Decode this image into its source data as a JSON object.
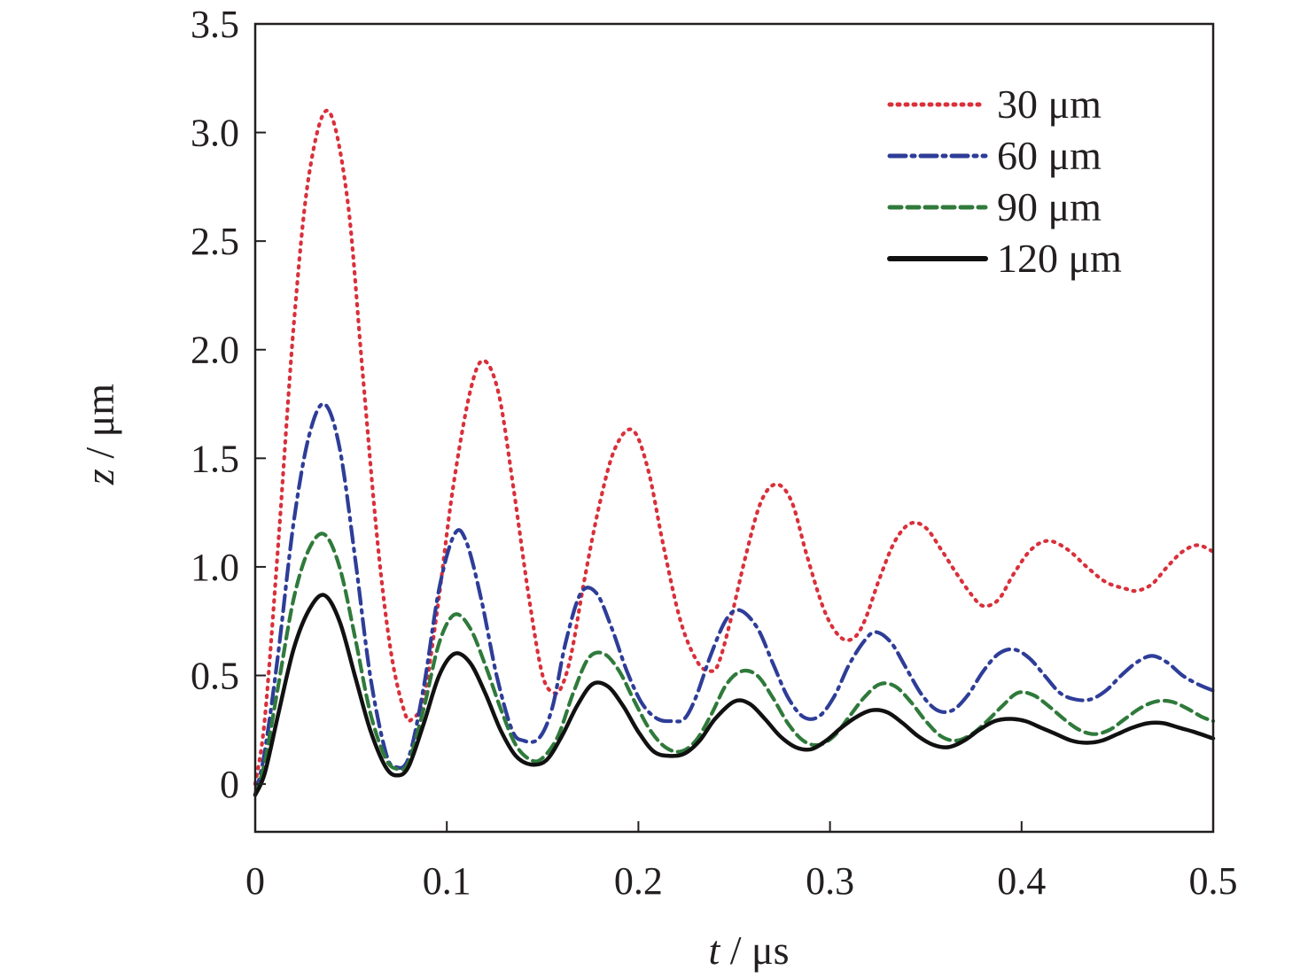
{
  "chart_data": {
    "type": "line",
    "xlabel": {
      "var": "t",
      "unit": " / μs"
    },
    "ylabel": {
      "var": "z",
      "unit": " / μm"
    },
    "xlim": [
      0,
      0.5
    ],
    "ylim": [
      -0.22,
      3.5
    ],
    "xticks": [
      0,
      0.1,
      0.2,
      0.3,
      0.4,
      0.5
    ],
    "xtick_labels": [
      "0",
      "0.1",
      "0.2",
      "0.3",
      "0.4",
      "0.5"
    ],
    "yticks": [
      0,
      0.5,
      1.0,
      1.5,
      2.0,
      2.5,
      3.0,
      3.5
    ],
    "ytick_labels": [
      "0",
      "0.5",
      "1.0",
      "1.5",
      "2.0",
      "2.5",
      "3.0",
      "3.5"
    ],
    "grid": false,
    "legend_position": "top-right",
    "series": [
      {
        "name": "30 μm",
        "color": "#d9303a",
        "style": "dotted",
        "x": [
          0,
          0.005,
          0.012,
          0.02,
          0.028,
          0.038,
          0.048,
          0.056,
          0.064,
          0.071,
          0.078,
          0.082,
          0.088,
          0.095,
          0.103,
          0.112,
          0.119,
          0.127,
          0.135,
          0.143,
          0.15,
          0.156,
          0.16,
          0.165,
          0.172,
          0.18,
          0.188,
          0.197,
          0.205,
          0.213,
          0.222,
          0.231,
          0.238,
          0.242,
          0.248,
          0.256,
          0.264,
          0.272,
          0.28,
          0.288,
          0.297,
          0.305,
          0.312,
          0.318,
          0.326,
          0.334,
          0.342,
          0.35,
          0.358,
          0.366,
          0.374,
          0.38,
          0.388,
          0.396,
          0.405,
          0.414,
          0.424,
          0.434,
          0.444,
          0.454,
          0.46,
          0.468,
          0.476,
          0.484,
          0.492,
          0.5
        ],
        "y": [
          0,
          0.3,
          1.1,
          2.1,
          2.8,
          3.1,
          2.7,
          1.9,
          1.1,
          0.6,
          0.33,
          0.3,
          0.4,
          0.8,
          1.35,
          1.8,
          1.95,
          1.8,
          1.35,
          0.85,
          0.5,
          0.42,
          0.45,
          0.6,
          0.95,
          1.3,
          1.55,
          1.63,
          1.45,
          1.1,
          0.75,
          0.56,
          0.52,
          0.56,
          0.75,
          1.05,
          1.3,
          1.38,
          1.3,
          1.05,
          0.8,
          0.68,
          0.67,
          0.75,
          0.95,
          1.12,
          1.2,
          1.18,
          1.08,
          0.97,
          0.87,
          0.82,
          0.85,
          0.97,
          1.08,
          1.12,
          1.08,
          1.0,
          0.93,
          0.9,
          0.89,
          0.92,
          1.0,
          1.07,
          1.1,
          1.07
        ]
      },
      {
        "name": "60 μm",
        "color": "#2e3d98",
        "style": "dashdot",
        "x": [
          0,
          0.005,
          0.012,
          0.02,
          0.028,
          0.036,
          0.044,
          0.052,
          0.06,
          0.068,
          0.073,
          0.08,
          0.088,
          0.096,
          0.104,
          0.11,
          0.118,
          0.126,
          0.134,
          0.14,
          0.148,
          0.155,
          0.162,
          0.17,
          0.178,
          0.186,
          0.194,
          0.202,
          0.21,
          0.218,
          0.224,
          0.23,
          0.238,
          0.246,
          0.253,
          0.262,
          0.27,
          0.278,
          0.286,
          0.294,
          0.302,
          0.31,
          0.318,
          0.324,
          0.332,
          0.34,
          0.348,
          0.356,
          0.364,
          0.372,
          0.38,
          0.388,
          0.396,
          0.404,
          0.412,
          0.42,
          0.428,
          0.436,
          0.444,
          0.452,
          0.46,
          0.468,
          0.476,
          0.484,
          0.492,
          0.5
        ],
        "y": [
          -0.05,
          0.15,
          0.6,
          1.2,
          1.6,
          1.75,
          1.55,
          1.05,
          0.5,
          0.15,
          0.08,
          0.12,
          0.45,
          0.9,
          1.15,
          1.12,
          0.85,
          0.5,
          0.25,
          0.2,
          0.21,
          0.35,
          0.65,
          0.88,
          0.88,
          0.72,
          0.52,
          0.37,
          0.3,
          0.29,
          0.3,
          0.4,
          0.6,
          0.76,
          0.8,
          0.72,
          0.56,
          0.4,
          0.31,
          0.31,
          0.4,
          0.55,
          0.66,
          0.7,
          0.65,
          0.53,
          0.41,
          0.34,
          0.34,
          0.41,
          0.52,
          0.6,
          0.62,
          0.58,
          0.5,
          0.42,
          0.39,
          0.39,
          0.43,
          0.5,
          0.56,
          0.59,
          0.56,
          0.5,
          0.46,
          0.43
        ]
      },
      {
        "name": "90 μm",
        "color": "#2f7a3b",
        "style": "dashed",
        "x": [
          0,
          0.005,
          0.012,
          0.02,
          0.028,
          0.036,
          0.044,
          0.052,
          0.06,
          0.068,
          0.074,
          0.08,
          0.088,
          0.096,
          0.104,
          0.112,
          0.12,
          0.128,
          0.136,
          0.144,
          0.15,
          0.158,
          0.166,
          0.174,
          0.182,
          0.19,
          0.198,
          0.206,
          0.214,
          0.222,
          0.23,
          0.238,
          0.246,
          0.254,
          0.262,
          0.27,
          0.278,
          0.286,
          0.294,
          0.302,
          0.31,
          0.318,
          0.326,
          0.334,
          0.342,
          0.35,
          0.358,
          0.366,
          0.374,
          0.382,
          0.39,
          0.398,
          0.406,
          0.414,
          0.422,
          0.43,
          0.438,
          0.446,
          0.454,
          0.462,
          0.47,
          0.478,
          0.486,
          0.494,
          0.5
        ],
        "y": [
          -0.05,
          0.1,
          0.45,
          0.85,
          1.08,
          1.15,
          1.0,
          0.68,
          0.33,
          0.12,
          0.07,
          0.1,
          0.35,
          0.65,
          0.78,
          0.72,
          0.55,
          0.35,
          0.18,
          0.11,
          0.12,
          0.22,
          0.42,
          0.58,
          0.6,
          0.52,
          0.38,
          0.25,
          0.17,
          0.15,
          0.2,
          0.32,
          0.46,
          0.52,
          0.5,
          0.4,
          0.28,
          0.2,
          0.18,
          0.22,
          0.31,
          0.4,
          0.46,
          0.45,
          0.38,
          0.29,
          0.22,
          0.2,
          0.23,
          0.29,
          0.36,
          0.42,
          0.41,
          0.36,
          0.3,
          0.25,
          0.23,
          0.25,
          0.3,
          0.35,
          0.38,
          0.38,
          0.35,
          0.31,
          0.29
        ]
      },
      {
        "name": "120 μm",
        "color": "#111111",
        "style": "solid",
        "x": [
          0,
          0.005,
          0.012,
          0.02,
          0.028,
          0.036,
          0.044,
          0.052,
          0.06,
          0.068,
          0.074,
          0.08,
          0.088,
          0.096,
          0.104,
          0.112,
          0.12,
          0.128,
          0.136,
          0.144,
          0.152,
          0.16,
          0.168,
          0.176,
          0.184,
          0.192,
          0.2,
          0.208,
          0.216,
          0.224,
          0.232,
          0.24,
          0.25,
          0.258,
          0.266,
          0.274,
          0.282,
          0.29,
          0.298,
          0.306,
          0.314,
          0.322,
          0.33,
          0.338,
          0.346,
          0.354,
          0.362,
          0.37,
          0.378,
          0.386,
          0.394,
          0.402,
          0.41,
          0.418,
          0.426,
          0.434,
          0.442,
          0.45,
          0.458,
          0.466,
          0.474,
          0.482,
          0.49,
          0.5
        ],
        "y": [
          -0.05,
          0.05,
          0.32,
          0.62,
          0.8,
          0.87,
          0.75,
          0.5,
          0.25,
          0.08,
          0.04,
          0.08,
          0.28,
          0.5,
          0.6,
          0.56,
          0.42,
          0.25,
          0.13,
          0.09,
          0.11,
          0.22,
          0.36,
          0.46,
          0.45,
          0.36,
          0.24,
          0.15,
          0.13,
          0.14,
          0.2,
          0.3,
          0.38,
          0.37,
          0.3,
          0.22,
          0.17,
          0.16,
          0.2,
          0.26,
          0.31,
          0.34,
          0.33,
          0.28,
          0.22,
          0.18,
          0.17,
          0.2,
          0.25,
          0.29,
          0.3,
          0.29,
          0.26,
          0.23,
          0.2,
          0.19,
          0.2,
          0.23,
          0.26,
          0.28,
          0.28,
          0.26,
          0.24,
          0.21
        ]
      }
    ]
  }
}
